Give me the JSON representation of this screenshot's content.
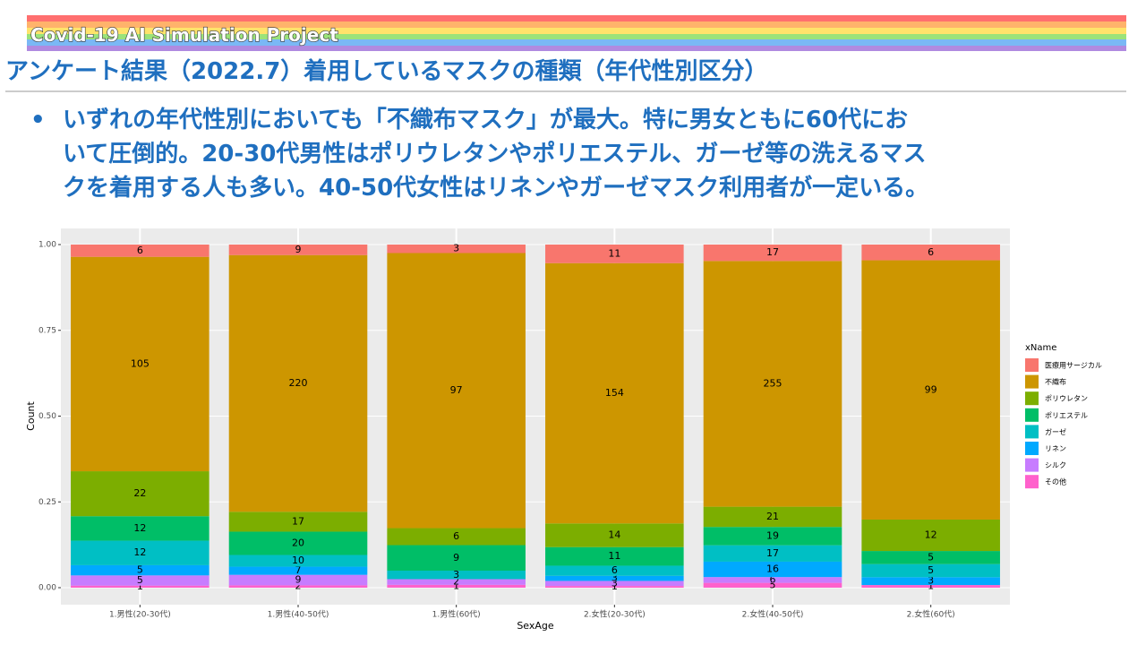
{
  "header": {
    "title": "Covid-19 AI Simulation Project",
    "heading": "アンケート結果（2022.7）着用しているマスクの種類（年代性別区分）",
    "bullet_lines": [
      "いずれの年代性別においても「不織布マスク」が最大。特に男女ともに60代にお",
      "いて圧倒的。20-30代男性はポリウレタンやポリエステル、ガーゼ等の洗えるマス",
      "クを着用する人も多い。40-50代女性はリネンやガーゼマスク利用者が一定いる。"
    ]
  },
  "chart_data": {
    "type": "bar",
    "stacked": "percent",
    "xlabel": "SexAge",
    "ylabel": "Count",
    "legend_title": "xName",
    "legend": "right",
    "categories": [
      "1.男性(20-30代)",
      "1.男性(40-50代)",
      "1.男性(60代)",
      "2.女性(20-30代)",
      "2.女性(40-50代)",
      "2.女性(60代)"
    ],
    "series": [
      {
        "name": "医療用サージカル",
        "color": "#F8766D",
        "values": [
          6,
          9,
          3,
          11,
          17,
          6
        ]
      },
      {
        "name": "不織布",
        "color": "#CD9600",
        "values": [
          105,
          220,
          97,
          154,
          255,
          99
        ]
      },
      {
        "name": "ポリウレタン",
        "color": "#7CAE00",
        "values": [
          22,
          17,
          6,
          14,
          21,
          12
        ]
      },
      {
        "name": "ポリエステル",
        "color": "#00BE67",
        "values": [
          12,
          20,
          9,
          11,
          19,
          5
        ]
      },
      {
        "name": "ガーゼ",
        "color": "#00BFC4",
        "values": [
          12,
          10,
          3,
          6,
          17,
          5
        ]
      },
      {
        "name": "リネン",
        "color": "#00A9FF",
        "values": [
          5,
          7,
          null,
          3,
          16,
          3
        ]
      },
      {
        "name": "シルク",
        "color": "#C77CFF",
        "values": [
          5,
          9,
          2,
          3,
          6,
          null
        ]
      },
      {
        "name": "その他",
        "color": "#FF61CC",
        "values": [
          1,
          2,
          1,
          1,
          5,
          1
        ]
      }
    ],
    "ylim": [
      0,
      1
    ],
    "yticks": [
      {
        "value": 0,
        "label": "0.00"
      },
      {
        "value": 0.25,
        "label": "0.25"
      },
      {
        "value": 0.5,
        "label": "0.50"
      },
      {
        "value": 0.75,
        "label": "0.75"
      },
      {
        "value": 1,
        "label": "1.00"
      }
    ],
    "grid": true
  }
}
